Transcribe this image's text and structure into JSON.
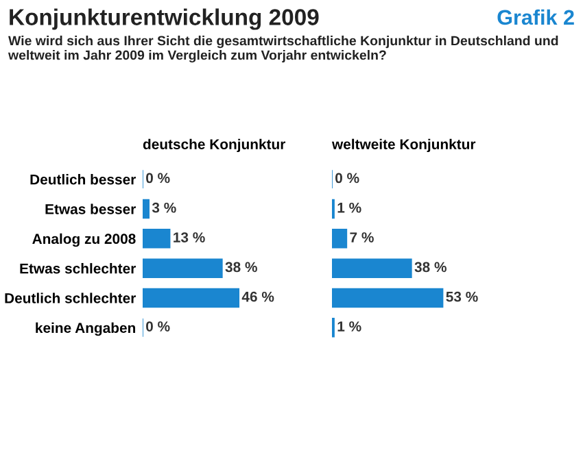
{
  "chart_data": [
    {
      "type": "bar",
      "orientation": "horizontal",
      "title": "deutsche Konjunktur",
      "annotations": [
        "Konjunkturentwicklung 2009",
        "Grafik 2",
        "Wie wird sich aus Ihrer Sicht die gesamtwirtschaftliche Konjunktur in Deutschland und weltweit im Jahr 2009 im Vergleich zum Vorjahr entwickeln?"
      ],
      "categories": [
        "Deutlich besser",
        "Etwas besser",
        "Analog zu 2008",
        "Etwas schlechter",
        "Deutlich schlechter",
        "keine Angaben"
      ],
      "values": [
        0,
        3,
        13,
        38,
        46,
        0
      ],
      "value_labels": [
        "0 %",
        "3 %",
        "13 %",
        "38 %",
        "46 %",
        "0 %"
      ],
      "color": "#1a86d0",
      "tick_labels": "y"
    },
    {
      "type": "bar",
      "orientation": "horizontal",
      "title": "weltweite Konjunktur",
      "categories": [
        null,
        null,
        null,
        null,
        null,
        null
      ],
      "values": [
        0,
        1,
        7,
        38,
        53,
        1
      ],
      "value_labels": [
        "0 %",
        "1 %",
        "7 %",
        "38 %",
        "53 %",
        "1 %"
      ],
      "color": "#1a86d0",
      "tick_labels": false
    }
  ]
}
